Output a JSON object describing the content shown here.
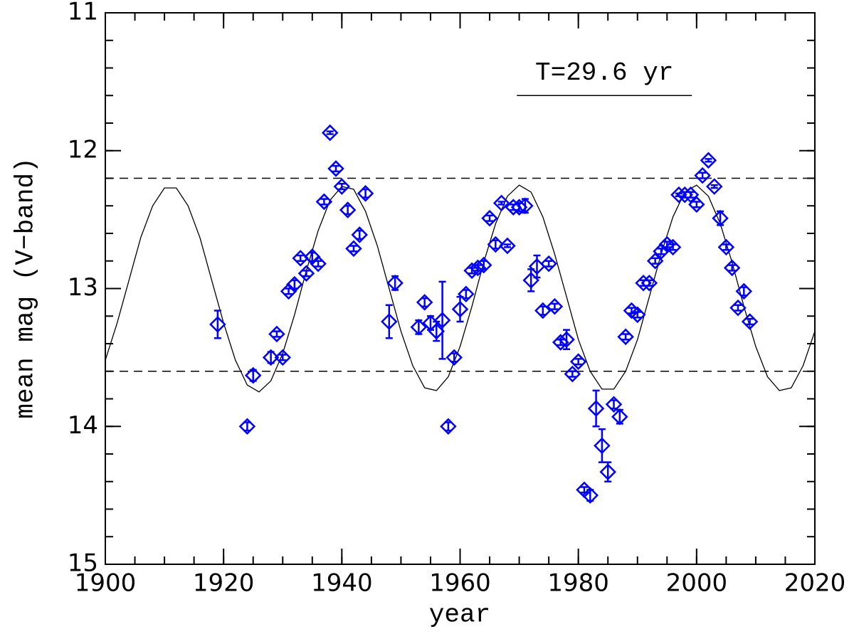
{
  "chart_data": {
    "type": "scatter",
    "xlabel": "year",
    "ylabel": "mean mag (V−band)",
    "xlim": [
      1900,
      2020
    ],
    "ylim": [
      11,
      15
    ],
    "invert_y": true,
    "xticks": [
      1900,
      1920,
      1940,
      1960,
      1980,
      2000,
      2020
    ],
    "yticks": [
      11,
      12,
      13,
      14,
      15
    ],
    "minor_xtick_step": 5,
    "minor_ytick_step": 0.2,
    "points": {
      "color": "#0000ff",
      "marker": "diamond",
      "x": [
        1919,
        1925,
        1924,
        1928,
        1929,
        1930,
        1931,
        1932,
        1933,
        1934,
        1935,
        1936,
        1937,
        1938,
        1939,
        1940,
        1941,
        1942,
        1943,
        1944,
        1948,
        1949,
        1953,
        1954,
        1955,
        1956,
        1957,
        1958,
        1959,
        1960,
        1961,
        1962,
        1963,
        1964,
        1965,
        1966,
        1967,
        1968,
        1969,
        1970,
        1971,
        1972,
        1973,
        1974,
        1975,
        1976,
        1977,
        1978,
        1979,
        1980,
        1981,
        1982,
        1983,
        1984,
        1985,
        1986,
        1987,
        1988,
        1989,
        1990,
        1991,
        1992,
        1993,
        1994,
        1995,
        1996,
        1997,
        1998,
        1999,
        2000,
        2001,
        2002,
        2003,
        2004,
        2005,
        2006,
        2007,
        2008,
        2009
      ],
      "y": [
        13.26,
        13.63,
        14.0,
        13.5,
        13.33,
        13.5,
        13.02,
        12.97,
        12.78,
        12.89,
        12.77,
        12.82,
        12.37,
        11.87,
        12.13,
        12.26,
        12.43,
        12.71,
        12.61,
        12.31,
        13.24,
        12.96,
        13.28,
        13.1,
        13.25,
        13.31,
        13.23,
        14.0,
        13.5,
        13.15,
        13.04,
        12.87,
        12.85,
        12.83,
        12.49,
        12.68,
        12.38,
        12.69,
        12.41,
        12.41,
        12.4,
        12.94,
        12.84,
        13.16,
        12.82,
        13.13,
        13.39,
        13.37,
        13.62,
        13.53,
        14.46,
        14.5,
        13.87,
        14.14,
        14.33,
        13.84,
        13.93,
        13.35,
        13.16,
        13.19,
        12.96,
        12.96,
        12.8,
        12.73,
        12.68,
        12.7,
        12.32,
        12.32,
        12.32,
        12.39,
        12.18,
        12.07,
        12.26,
        12.49,
        12.7,
        12.85,
        13.14,
        13.02,
        13.24
      ],
      "yerr": [
        0.1,
        0.04,
        0.03,
        0.04,
        0.02,
        0.02,
        0.02,
        0.03,
        0.02,
        0.02,
        0.03,
        0.02,
        0.02,
        0.01,
        0.02,
        0.02,
        0.03,
        0.02,
        0.03,
        0.03,
        0.12,
        0.05,
        0.05,
        0.03,
        0.05,
        0.07,
        0.28,
        0.03,
        0.03,
        0.09,
        0.03,
        0.02,
        0.02,
        0.03,
        0.02,
        0.03,
        0.01,
        0.01,
        0.02,
        0.03,
        0.05,
        0.08,
        0.08,
        0.03,
        0.02,
        0.02,
        0.02,
        0.07,
        0.02,
        0.02,
        0.02,
        0.04,
        0.13,
        0.12,
        0.07,
        0.03,
        0.05,
        0.02,
        0.02,
        0.02,
        0.02,
        0.02,
        0.02,
        0.02,
        0.02,
        0.02,
        0.01,
        0.02,
        0.02,
        0.02,
        0.02,
        0.01,
        0.01,
        0.05,
        0.02,
        0.02,
        0.02,
        0.03,
        0.02
      ]
    },
    "curve": {
      "color": "#000000",
      "x": [
        1900,
        1902,
        1904,
        1906,
        1908,
        1910,
        1912,
        1914,
        1916,
        1918,
        1920,
        1922,
        1924,
        1926,
        1928,
        1930,
        1932,
        1934,
        1936,
        1938,
        1940,
        1942,
        1944,
        1946,
        1948,
        1950,
        1952,
        1954,
        1956,
        1958,
        1960,
        1962,
        1964,
        1966,
        1968,
        1970,
        1972,
        1974,
        1976,
        1978,
        1980,
        1982,
        1984,
        1986,
        1988,
        1990,
        1992,
        1994,
        1996,
        1998,
        2000,
        2002,
        2004,
        2006,
        2008,
        2010,
        2012,
        2014,
        2016,
        2018,
        2020
      ],
      "y": [
        13.52,
        13.25,
        12.94,
        12.63,
        12.4,
        12.27,
        12.27,
        12.4,
        12.63,
        12.94,
        13.25,
        13.52,
        13.7,
        13.75,
        13.67,
        13.47,
        13.19,
        12.87,
        12.58,
        12.36,
        12.26,
        12.28,
        12.44,
        12.69,
        13.0,
        13.31,
        13.56,
        13.72,
        13.74,
        13.64,
        13.42,
        13.13,
        12.81,
        12.53,
        12.33,
        12.25,
        12.3,
        12.48,
        12.75,
        13.06,
        13.37,
        13.6,
        13.73,
        13.73,
        13.6,
        13.37,
        13.06,
        12.75,
        12.48,
        12.3,
        12.25,
        12.33,
        12.53,
        12.81,
        13.13,
        13.42,
        13.64,
        13.74,
        13.72,
        13.56,
        13.31
      ]
    },
    "hlines": [
      12.2,
      13.6
    ],
    "annotation": {
      "text": "T=29.6 yr",
      "x": [
        1969.6,
        1999.2
      ],
      "y": 11.6
    }
  }
}
